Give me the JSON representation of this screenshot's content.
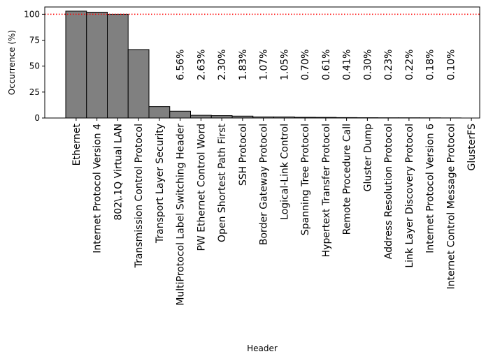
{
  "chart_data": {
    "type": "bar",
    "xlabel": "Header",
    "ylabel": "Occurrence (%)",
    "ylim": [
      0,
      107
    ],
    "yticks": [
      "0",
      "25",
      "50",
      "75",
      "100"
    ],
    "grid": false,
    "bar_color": "#808080",
    "bar_edge_color": "#000000",
    "reference_line": {
      "value": 100,
      "color": "#ff0000",
      "style": "dotted"
    },
    "categories": [
      "Ethernet",
      "Internet Protocol Version 4",
      "802\\.1Q Virtual LAN",
      "Transmission Control Protocol",
      "Transport Layer Security",
      "MultiProtocol Label Switching Header",
      "PW Ethernet Control Word",
      "Open Shortest Path First",
      "SSH Protocol",
      "Border Gateway Protocol",
      "Logical-Link Control",
      "Spanning Tree Protocol",
      "Hypertext Transfer Protocol",
      "Remote Procedure Call",
      "Gluster Dump",
      "Address Resolution Protocol",
      "Link Layer Discovery Protocol",
      "Internet Protocol Version 6",
      "Internet Control Message Protocol",
      "GlusterFS"
    ],
    "values": [
      103,
      102,
      100,
      66,
      11,
      6.56,
      2.63,
      2.3,
      1.83,
      1.07,
      1.05,
      0.7,
      0.61,
      0.41,
      0.3,
      0.23,
      0.22,
      0.18,
      0.1,
      0
    ],
    "data_labels": [
      "",
      "",
      "",
      "",
      "",
      "6.56%",
      "2.63%",
      "2.30%",
      "1.83%",
      "1.07%",
      "1.05%",
      "0.70%",
      "0.61%",
      "0.41%",
      "0.30%",
      "0.23%",
      "0.22%",
      "0.18%",
      "0.10%",
      ""
    ]
  }
}
